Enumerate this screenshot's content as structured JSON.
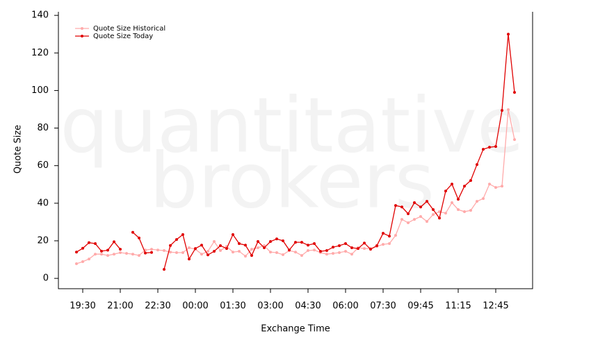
{
  "chart_data": {
    "type": "line",
    "watermark": [
      "quantitative",
      "brokers"
    ],
    "x_label": "Exchange Time",
    "y_label": "Quote Size",
    "categories": [
      null,
      "19:30",
      null,
      null,
      null,
      null,
      null,
      "21:00",
      null,
      null,
      null,
      null,
      null,
      "22:30",
      null,
      null,
      null,
      null,
      null,
      "00:00",
      null,
      null,
      null,
      null,
      null,
      "01:30",
      null,
      null,
      null,
      null,
      null,
      "03:00",
      null,
      null,
      null,
      null,
      null,
      "04:30",
      null,
      null,
      null,
      null,
      null,
      "06:00",
      null,
      null,
      null,
      null,
      null,
      "07:30",
      null,
      null,
      null,
      null,
      null,
      "09:45",
      null,
      null,
      null,
      null,
      null,
      "11:15",
      null,
      null,
      null,
      null,
      null,
      "12:45",
      null,
      null,
      null
    ],
    "series": [
      {
        "name": "Quote Size Historical",
        "color": "#ffaaaa",
        "values": [
          7.8,
          8.9,
          10.3,
          12.9,
          12.9,
          12.2,
          12.9,
          13.7,
          13.3,
          12.9,
          12.2,
          15.1,
          15.5,
          15.1,
          14.8,
          14,
          13.7,
          13.7,
          16.3,
          15.5,
          12.9,
          14.4,
          19.6,
          14.8,
          17,
          14,
          14.4,
          11.8,
          15.5,
          16.3,
          17.4,
          14,
          13.7,
          12.6,
          14.8,
          14,
          12.2,
          14.8,
          15.1,
          13.7,
          12.9,
          13.3,
          13.7,
          14.4,
          12.9,
          16.3,
          15.9,
          15.9,
          17,
          18.1,
          18.5,
          22.9,
          31.4,
          29.6,
          31.4,
          32.9,
          30.3,
          34,
          35.5,
          34.7,
          40.3,
          36.6,
          35.5,
          36.2,
          41,
          42.5,
          50.2,
          48.4,
          49.1,
          89.8,
          73.9
        ]
      },
      {
        "name": "Quote Size Today",
        "color": "#e00000",
        "values": [
          14,
          16,
          19,
          18.5,
          14.5,
          15,
          19.5,
          15.5,
          null,
          24.5,
          21.5,
          13.5,
          13.8,
          null,
          4.8,
          17.5,
          20.7,
          23.3,
          10.3,
          15.9,
          17.7,
          12.5,
          14.4,
          17.4,
          15.9,
          23.3,
          18.5,
          17.7,
          12.2,
          19.6,
          16.3,
          19.6,
          21,
          20,
          15.1,
          19.2,
          19.2,
          17.7,
          18.5,
          14.4,
          14.8,
          16.6,
          17.4,
          18.5,
          16.3,
          15.9,
          18.8,
          15.5,
          17.4,
          24,
          22.5,
          38.8,
          38,
          34.4,
          40.3,
          38,
          41,
          36.6,
          32.1,
          46.5,
          50.2,
          42.1,
          49.1,
          52.1,
          60.6,
          68.7,
          69.8,
          70.2,
          89.4,
          130,
          99
        ]
      }
    ],
    "ylim": [
      -5.5,
      141.9
    ],
    "yticks": [
      0,
      20,
      40,
      60,
      80,
      100,
      120,
      140
    ],
    "legend": "top-left"
  }
}
